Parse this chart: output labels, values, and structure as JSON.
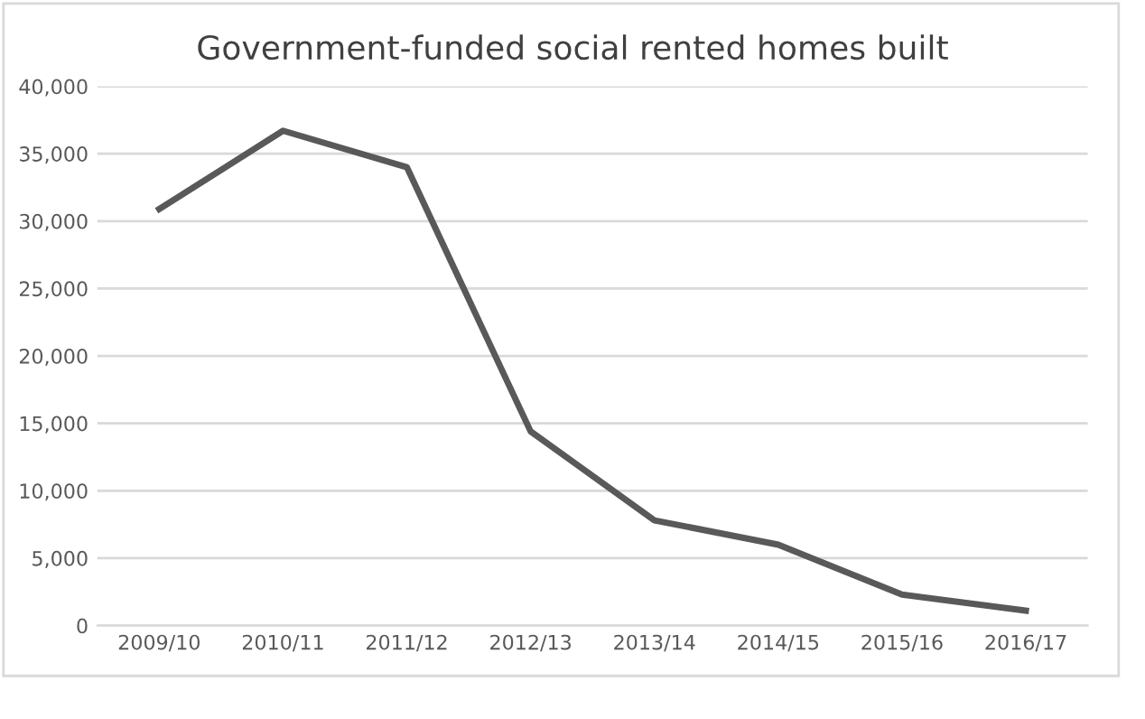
{
  "chart_data": {
    "type": "line",
    "title": "Government-funded social rented homes built",
    "categories": [
      "2009/10",
      "2010/11",
      "2011/12",
      "2012/13",
      "2013/14",
      "2014/15",
      "2015/16",
      "2016/17"
    ],
    "series": [
      {
        "color": "#595959",
        "values": [
          30900,
          36700,
          34000,
          14400,
          7800,
          6000,
          2300,
          1100
        ]
      }
    ],
    "ylim": [
      0,
      40000
    ],
    "yticks": [
      0,
      {
        "value": 5000,
        "label": "5,000"
      },
      {
        "value": 10000,
        "label": "10,000"
      },
      {
        "value": 15000,
        "label": "15,000"
      },
      {
        "value": 20000,
        "label": "20,000"
      },
      {
        "value": 25000,
        "label": "25,000"
      },
      {
        "value": 30000,
        "label": "30,000"
      },
      {
        "value": 35000,
        "label": "35,000"
      },
      {
        "value": 40000,
        "label": "40,000"
      }
    ],
    "grid": "y",
    "legend": false,
    "marker": "none",
    "line_style": "solid"
  }
}
